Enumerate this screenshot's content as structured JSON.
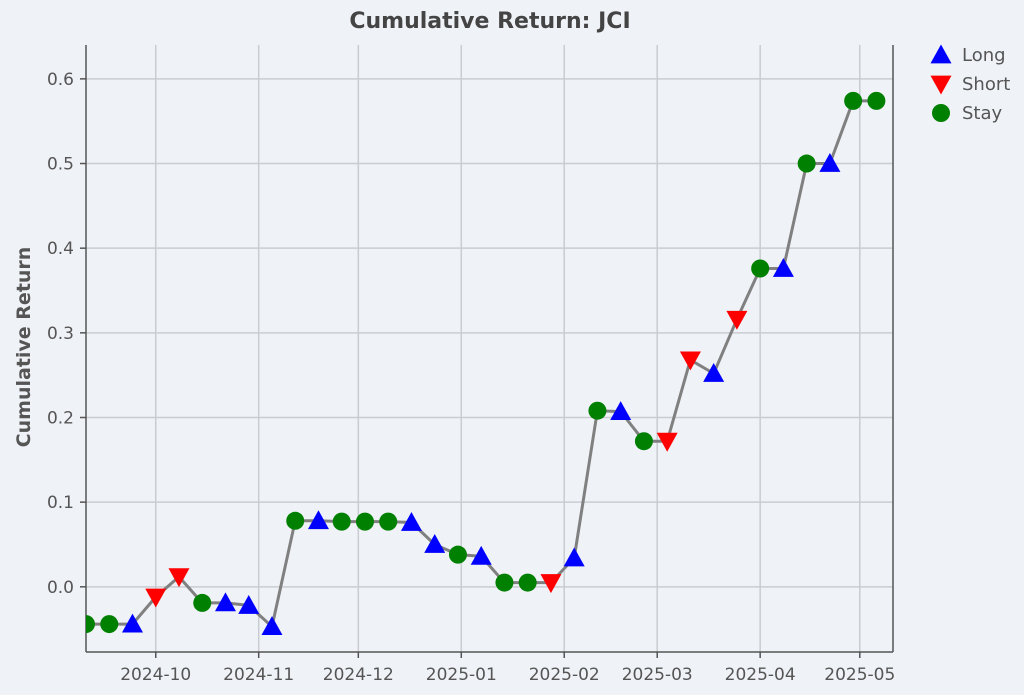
{
  "chart_data": {
    "type": "line",
    "title": "Cumulative Return: JCI",
    "xlabel": "",
    "ylabel": "Cumulative Return",
    "xlim": [
      "2024-09-10",
      "2025-05-11"
    ],
    "ylim": [
      -0.077,
      0.64
    ],
    "grid": true,
    "legend_placement": "outside-top-right",
    "x_ticks": [
      "2024-10-01",
      "2024-11-01",
      "2024-12-01",
      "2025-01-01",
      "2025-02-01",
      "2025-03-01",
      "2025-04-01",
      "2025-05-01"
    ],
    "x_tick_labels": [
      "2024-10",
      "2024-11",
      "2024-12",
      "2025-01",
      "2025-02",
      "2025-03",
      "2025-04",
      "2025-05"
    ],
    "y_ticks": [
      0.0,
      0.1,
      0.2,
      0.3,
      0.4,
      0.5,
      0.6
    ],
    "y_tick_labels": [
      "0.0",
      "0.1",
      "0.2",
      "0.3",
      "0.4",
      "0.5",
      "0.6"
    ],
    "line_color": "#808080",
    "legend": [
      {
        "label": "Long",
        "marker": "triangle-up",
        "color": "#0000ff"
      },
      {
        "label": "Short",
        "marker": "triangle-down",
        "color": "#ff0000"
      },
      {
        "label": "Stay",
        "marker": "circle",
        "color": "#008000"
      }
    ],
    "points": [
      {
        "x": "2024-09-10",
        "y": -0.044,
        "action": "Stay"
      },
      {
        "x": "2024-09-17",
        "y": -0.044,
        "action": "Stay"
      },
      {
        "x": "2024-09-24",
        "y": -0.044,
        "action": "Long"
      },
      {
        "x": "2024-10-01",
        "y": -0.012,
        "action": "Short"
      },
      {
        "x": "2024-10-08",
        "y": 0.012,
        "action": "Short"
      },
      {
        "x": "2024-10-15",
        "y": -0.019,
        "action": "Stay"
      },
      {
        "x": "2024-10-22",
        "y": -0.019,
        "action": "Long"
      },
      {
        "x": "2024-10-29",
        "y": -0.022,
        "action": "Long"
      },
      {
        "x": "2024-11-05",
        "y": -0.047,
        "action": "Long"
      },
      {
        "x": "2024-11-12",
        "y": 0.078,
        "action": "Stay"
      },
      {
        "x": "2024-11-19",
        "y": 0.078,
        "action": "Long"
      },
      {
        "x": "2024-11-26",
        "y": 0.077,
        "action": "Stay"
      },
      {
        "x": "2024-12-03",
        "y": 0.077,
        "action": "Stay"
      },
      {
        "x": "2024-12-10",
        "y": 0.077,
        "action": "Stay"
      },
      {
        "x": "2024-12-17",
        "y": 0.076,
        "action": "Long"
      },
      {
        "x": "2024-12-24",
        "y": 0.05,
        "action": "Long"
      },
      {
        "x": "2024-12-31",
        "y": 0.038,
        "action": "Stay"
      },
      {
        "x": "2025-01-07",
        "y": 0.036,
        "action": "Long"
      },
      {
        "x": "2025-01-14",
        "y": 0.005,
        "action": "Stay"
      },
      {
        "x": "2025-01-21",
        "y": 0.005,
        "action": "Stay"
      },
      {
        "x": "2025-01-28",
        "y": 0.005,
        "action": "Short"
      },
      {
        "x": "2025-02-04",
        "y": 0.034,
        "action": "Long"
      },
      {
        "x": "2025-02-11",
        "y": 0.208,
        "action": "Stay"
      },
      {
        "x": "2025-02-18",
        "y": 0.207,
        "action": "Long"
      },
      {
        "x": "2025-02-25",
        "y": 0.172,
        "action": "Stay"
      },
      {
        "x": "2025-03-04",
        "y": 0.172,
        "action": "Short"
      },
      {
        "x": "2025-03-11",
        "y": 0.268,
        "action": "Short"
      },
      {
        "x": "2025-03-18",
        "y": 0.252,
        "action": "Long"
      },
      {
        "x": "2025-03-25",
        "y": 0.316,
        "action": "Short"
      },
      {
        "x": "2025-04-01",
        "y": 0.376,
        "action": "Stay"
      },
      {
        "x": "2025-04-08",
        "y": 0.376,
        "action": "Long"
      },
      {
        "x": "2025-04-15",
        "y": 0.5,
        "action": "Stay"
      },
      {
        "x": "2025-04-22",
        "y": 0.5,
        "action": "Long"
      },
      {
        "x": "2025-04-29",
        "y": 0.574,
        "action": "Stay"
      },
      {
        "x": "2025-05-06",
        "y": 0.574,
        "action": "Stay"
      }
    ]
  }
}
